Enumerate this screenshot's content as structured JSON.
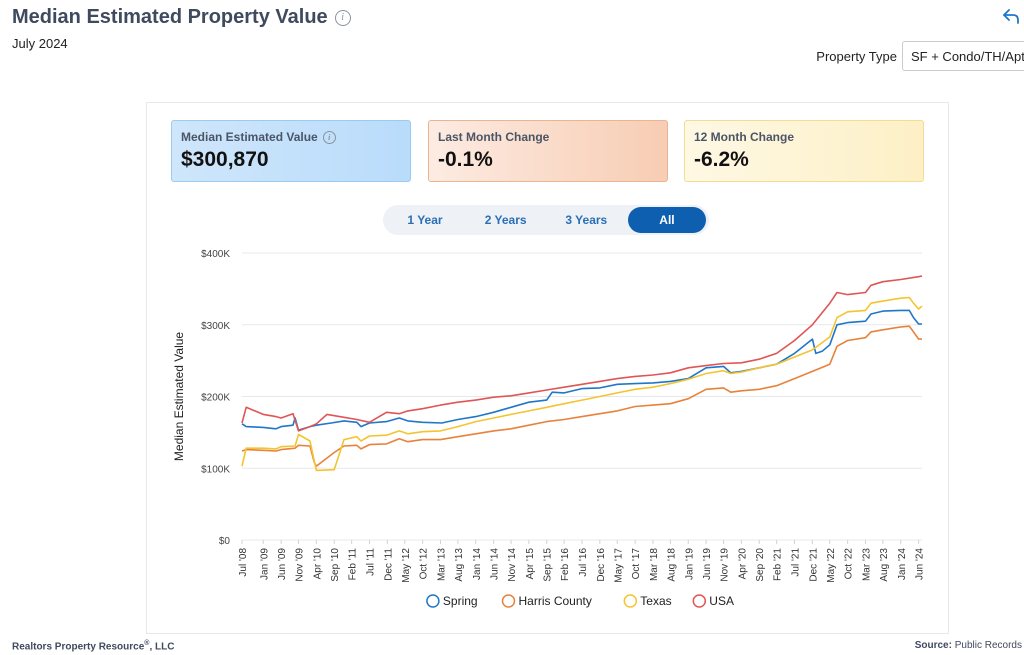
{
  "header": {
    "title": "Median Estimated Property Value",
    "subtitle": "July 2024"
  },
  "property_type": {
    "label": "Property Type",
    "value": "SF + Condo/TH/Apt"
  },
  "cards": [
    {
      "label": "Median Estimated Value",
      "value": "$300,870",
      "color": "#bcdcfa"
    },
    {
      "label": "Last Month Change",
      "value": "-0.1%",
      "color": "#f7cdb3"
    },
    {
      "label": "12 Month Change",
      "value": "-6.2%",
      "color": "#fdf0c6"
    }
  ],
  "range_buttons": [
    "1 Year",
    "2 Years",
    "3 Years",
    "All"
  ],
  "range_selected": "All",
  "footer": {
    "left_text": "Realtors Property Resource",
    "left_mark": "®",
    "left_suffix": ", LLC",
    "right_label": "Source:",
    "right_value": "Public Records"
  },
  "chart_data": {
    "type": "line",
    "ylabel": "Median Estimated Value",
    "ylim": [
      0,
      400000
    ],
    "y_ticks": [
      "$0",
      "$100K",
      "$200K",
      "$300K",
      "$400K"
    ],
    "y_tick_values": [
      0,
      100000,
      200000,
      300000,
      400000
    ],
    "x_range": [
      2008.5,
      2024.5
    ],
    "x_tick_labels": [
      "Jul '08",
      "Jan '09",
      "Jun '09",
      "Nov '09",
      "Apr '10",
      "Sep '10",
      "Feb '11",
      "Jul '11",
      "Dec '11",
      "May '12",
      "Oct '12",
      "Mar '13",
      "Aug '13",
      "Jan '14",
      "Jun '14",
      "Nov '14",
      "Apr '15",
      "Sep '15",
      "Feb '16",
      "Jul '16",
      "Dec '16",
      "May '17",
      "Oct '17",
      "Mar '18",
      "Aug '18",
      "Jan '19",
      "Jun '19",
      "Nov '19",
      "Apr '20",
      "Sep '20",
      "Feb '21",
      "Jul '21",
      "Dec '21",
      "May '22",
      "Oct '22",
      "Mar '23",
      "Aug '23",
      "Jan '24",
      "Jun '24"
    ],
    "x_tick_values": [
      2008.5,
      2009.0,
      2009.42,
      2009.83,
      2010.25,
      2010.67,
      2011.08,
      2011.5,
      2011.92,
      2012.33,
      2012.75,
      2013.17,
      2013.58,
      2014.0,
      2014.42,
      2014.83,
      2015.25,
      2015.67,
      2016.08,
      2016.5,
      2016.92,
      2017.33,
      2017.75,
      2018.17,
      2018.58,
      2019.0,
      2019.42,
      2019.83,
      2020.25,
      2020.67,
      2021.08,
      2021.5,
      2021.92,
      2022.33,
      2022.75,
      2023.17,
      2023.58,
      2024.0,
      2024.42
    ],
    "legend_position": "bottom",
    "grid": true,
    "series": [
      {
        "name": "Spring",
        "color": "#1f77c8",
        "points": [
          [
            2008.5,
            162000
          ],
          [
            2008.6,
            158000
          ],
          [
            2009.0,
            157000
          ],
          [
            2009.3,
            155000
          ],
          [
            2009.42,
            158000
          ],
          [
            2009.7,
            160000
          ],
          [
            2009.75,
            170000
          ],
          [
            2009.83,
            153000
          ],
          [
            2010.1,
            158000
          ],
          [
            2010.25,
            160000
          ],
          [
            2010.6,
            163000
          ],
          [
            2010.9,
            166000
          ],
          [
            2011.2,
            164000
          ],
          [
            2011.3,
            158000
          ],
          [
            2011.5,
            163000
          ],
          [
            2011.9,
            165000
          ],
          [
            2012.2,
            170000
          ],
          [
            2012.4,
            166000
          ],
          [
            2012.75,
            164000
          ],
          [
            2013.2,
            163000
          ],
          [
            2013.58,
            168000
          ],
          [
            2014.0,
            172000
          ],
          [
            2014.42,
            178000
          ],
          [
            2014.83,
            185000
          ],
          [
            2015.25,
            192000
          ],
          [
            2015.67,
            195000
          ],
          [
            2015.8,
            206000
          ],
          [
            2016.08,
            205000
          ],
          [
            2016.5,
            211000
          ],
          [
            2016.92,
            212000
          ],
          [
            2017.33,
            217000
          ],
          [
            2017.75,
            218000
          ],
          [
            2018.17,
            219000
          ],
          [
            2018.58,
            221000
          ],
          [
            2019.0,
            225000
          ],
          [
            2019.42,
            240000
          ],
          [
            2019.83,
            242000
          ],
          [
            2020.0,
            233000
          ],
          [
            2020.25,
            235000
          ],
          [
            2020.67,
            240000
          ],
          [
            2021.08,
            245000
          ],
          [
            2021.5,
            260000
          ],
          [
            2021.92,
            280000
          ],
          [
            2022.0,
            260000
          ],
          [
            2022.15,
            263000
          ],
          [
            2022.33,
            272000
          ],
          [
            2022.5,
            300000
          ],
          [
            2022.75,
            303000
          ],
          [
            2023.17,
            305000
          ],
          [
            2023.3,
            315000
          ],
          [
            2023.58,
            319000
          ],
          [
            2024.0,
            320000
          ],
          [
            2024.2,
            320000
          ],
          [
            2024.3,
            310000
          ],
          [
            2024.42,
            301000
          ],
          [
            2024.5,
            301000
          ]
        ]
      },
      {
        "name": "Harris County",
        "color": "#e8823a",
        "points": [
          [
            2008.5,
            124000
          ],
          [
            2008.6,
            126000
          ],
          [
            2009.0,
            125000
          ],
          [
            2009.3,
            124000
          ],
          [
            2009.42,
            126000
          ],
          [
            2009.75,
            128000
          ],
          [
            2009.83,
            132000
          ],
          [
            2010.1,
            131000
          ],
          [
            2010.2,
            108000
          ],
          [
            2010.25,
            103000
          ],
          [
            2010.67,
            122000
          ],
          [
            2010.9,
            131000
          ],
          [
            2011.2,
            132000
          ],
          [
            2011.3,
            127000
          ],
          [
            2011.5,
            133000
          ],
          [
            2011.9,
            134000
          ],
          [
            2012.2,
            141000
          ],
          [
            2012.4,
            137000
          ],
          [
            2012.75,
            140000
          ],
          [
            2013.17,
            140000
          ],
          [
            2013.58,
            144000
          ],
          [
            2014.0,
            148000
          ],
          [
            2014.42,
            152000
          ],
          [
            2014.83,
            155000
          ],
          [
            2015.25,
            160000
          ],
          [
            2015.67,
            165000
          ],
          [
            2016.08,
            168000
          ],
          [
            2016.5,
            172000
          ],
          [
            2016.92,
            176000
          ],
          [
            2017.33,
            180000
          ],
          [
            2017.75,
            186000
          ],
          [
            2018.17,
            188000
          ],
          [
            2018.58,
            190000
          ],
          [
            2019.0,
            197000
          ],
          [
            2019.42,
            210000
          ],
          [
            2019.83,
            212000
          ],
          [
            2020.0,
            206000
          ],
          [
            2020.25,
            208000
          ],
          [
            2020.67,
            210000
          ],
          [
            2021.08,
            215000
          ],
          [
            2021.5,
            225000
          ],
          [
            2021.92,
            235000
          ],
          [
            2022.33,
            245000
          ],
          [
            2022.5,
            270000
          ],
          [
            2022.75,
            278000
          ],
          [
            2023.17,
            282000
          ],
          [
            2023.3,
            290000
          ],
          [
            2023.58,
            293000
          ],
          [
            2024.0,
            297000
          ],
          [
            2024.2,
            298000
          ],
          [
            2024.3,
            290000
          ],
          [
            2024.42,
            280000
          ],
          [
            2024.5,
            280000
          ]
        ]
      },
      {
        "name": "Texas",
        "color": "#f4c430",
        "points": [
          [
            2008.5,
            103000
          ],
          [
            2008.6,
            128000
          ],
          [
            2009.0,
            128000
          ],
          [
            2009.3,
            127000
          ],
          [
            2009.42,
            130000
          ],
          [
            2009.75,
            131000
          ],
          [
            2009.83,
            147000
          ],
          [
            2010.1,
            138000
          ],
          [
            2010.2,
            110000
          ],
          [
            2010.25,
            97000
          ],
          [
            2010.67,
            98000
          ],
          [
            2010.9,
            140000
          ],
          [
            2011.2,
            144000
          ],
          [
            2011.3,
            138000
          ],
          [
            2011.5,
            145000
          ],
          [
            2011.9,
            146000
          ],
          [
            2012.2,
            152000
          ],
          [
            2012.4,
            148000
          ],
          [
            2012.75,
            151000
          ],
          [
            2013.17,
            152000
          ],
          [
            2013.58,
            158000
          ],
          [
            2014.0,
            165000
          ],
          [
            2014.42,
            170000
          ],
          [
            2014.83,
            175000
          ],
          [
            2015.25,
            180000
          ],
          [
            2015.67,
            185000
          ],
          [
            2016.08,
            190000
          ],
          [
            2016.5,
            195000
          ],
          [
            2016.92,
            200000
          ],
          [
            2017.33,
            205000
          ],
          [
            2017.75,
            210000
          ],
          [
            2018.17,
            213000
          ],
          [
            2018.58,
            218000
          ],
          [
            2019.0,
            224000
          ],
          [
            2019.42,
            232000
          ],
          [
            2019.83,
            236000
          ],
          [
            2020.0,
            232000
          ],
          [
            2020.25,
            234000
          ],
          [
            2020.67,
            240000
          ],
          [
            2021.08,
            245000
          ],
          [
            2021.5,
            255000
          ],
          [
            2021.92,
            265000
          ],
          [
            2022.33,
            283000
          ],
          [
            2022.5,
            310000
          ],
          [
            2022.75,
            318000
          ],
          [
            2023.17,
            320000
          ],
          [
            2023.3,
            330000
          ],
          [
            2023.58,
            333000
          ],
          [
            2024.0,
            337000
          ],
          [
            2024.2,
            338000
          ],
          [
            2024.3,
            330000
          ],
          [
            2024.42,
            322000
          ],
          [
            2024.5,
            326000
          ]
        ]
      },
      {
        "name": "USA",
        "color": "#e05555",
        "points": [
          [
            2008.5,
            163000
          ],
          [
            2008.6,
            185000
          ],
          [
            2009.0,
            175000
          ],
          [
            2009.3,
            172000
          ],
          [
            2009.42,
            170000
          ],
          [
            2009.7,
            176000
          ],
          [
            2009.83,
            152000
          ],
          [
            2010.1,
            158000
          ],
          [
            2010.25,
            162000
          ],
          [
            2010.5,
            175000
          ],
          [
            2010.9,
            171000
          ],
          [
            2011.2,
            168000
          ],
          [
            2011.5,
            164000
          ],
          [
            2011.9,
            178000
          ],
          [
            2012.2,
            176000
          ],
          [
            2012.4,
            180000
          ],
          [
            2012.75,
            183000
          ],
          [
            2013.17,
            188000
          ],
          [
            2013.58,
            192000
          ],
          [
            2014.0,
            195000
          ],
          [
            2014.42,
            199000
          ],
          [
            2014.83,
            201000
          ],
          [
            2015.25,
            205000
          ],
          [
            2015.67,
            209000
          ],
          [
            2016.08,
            213000
          ],
          [
            2016.5,
            217000
          ],
          [
            2016.92,
            221000
          ],
          [
            2017.33,
            225000
          ],
          [
            2017.75,
            228000
          ],
          [
            2018.17,
            230000
          ],
          [
            2018.58,
            233000
          ],
          [
            2019.0,
            240000
          ],
          [
            2019.42,
            243000
          ],
          [
            2019.83,
            246000
          ],
          [
            2020.25,
            247000
          ],
          [
            2020.67,
            252000
          ],
          [
            2021.08,
            260000
          ],
          [
            2021.5,
            278000
          ],
          [
            2021.92,
            300000
          ],
          [
            2022.33,
            330000
          ],
          [
            2022.5,
            345000
          ],
          [
            2022.75,
            342000
          ],
          [
            2023.17,
            345000
          ],
          [
            2023.3,
            355000
          ],
          [
            2023.58,
            360000
          ],
          [
            2024.0,
            363000
          ],
          [
            2024.42,
            367000
          ],
          [
            2024.5,
            368000
          ]
        ]
      }
    ]
  }
}
